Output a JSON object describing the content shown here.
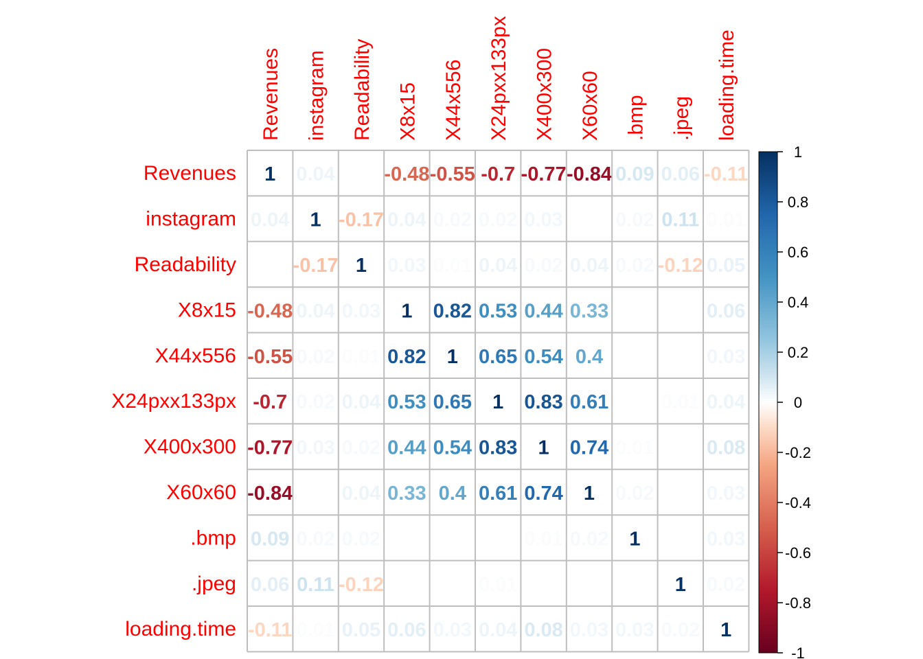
{
  "chart_data": {
    "type": "heatmap",
    "title": "",
    "variables": [
      "Revenues",
      "instagram",
      "Readability",
      "X8x15",
      "X44x556",
      "X24pxx133px",
      "X400x300",
      "X60x60",
      ".bmp",
      ".jpeg",
      "loading.time"
    ],
    "matrix": [
      [
        1,
        0.04,
        0,
        -0.48,
        -0.55,
        -0.7,
        -0.77,
        -0.84,
        0.09,
        0.06,
        -0.11
      ],
      [
        0.04,
        1,
        -0.17,
        0.04,
        0.02,
        0.02,
        0.03,
        0,
        0.02,
        0.11,
        0.01
      ],
      [
        0,
        -0.17,
        1,
        0.03,
        0.01,
        0.04,
        0.02,
        0.04,
        0.02,
        -0.12,
        0.05
      ],
      [
        -0.48,
        0.04,
        0.03,
        1,
        0.82,
        0.53,
        0.44,
        0.33,
        0,
        0,
        0.06
      ],
      [
        -0.55,
        0.02,
        0.01,
        0.82,
        1,
        0.65,
        0.54,
        0.4,
        0,
        0,
        0.03
      ],
      [
        -0.7,
        0.02,
        0.04,
        0.53,
        0.65,
        1,
        0.83,
        0.61,
        0,
        0.01,
        0.04
      ],
      [
        -0.77,
        0.03,
        0.02,
        0.44,
        0.54,
        0.83,
        1,
        0.74,
        0.01,
        0,
        0.08
      ],
      [
        -0.84,
        0,
        0.04,
        0.33,
        0.4,
        0.61,
        0.74,
        1,
        0.02,
        0,
        0.03
      ],
      [
        0.09,
        0.02,
        0.02,
        0,
        0,
        0,
        0.01,
        0.02,
        1,
        0,
        0.03
      ],
      [
        0.06,
        0.11,
        -0.12,
        0,
        0,
        0.01,
        0,
        0,
        0,
        1,
        0.02
      ],
      [
        -0.11,
        0.01,
        0.05,
        0.06,
        0.03,
        0.04,
        0.08,
        0.03,
        0.03,
        0.02,
        1
      ]
    ],
    "colorbar": {
      "range": [
        -1,
        1
      ],
      "ticks": [
        "1",
        "0.8",
        "0.6",
        "0.4",
        "0.2",
        "0",
        "-0.2",
        "-0.4",
        "-0.6",
        "-0.8",
        "-1"
      ],
      "ticks_values": [
        1,
        0.8,
        0.6,
        0.4,
        0.2,
        0,
        -0.2,
        -0.4,
        -0.6,
        -0.8,
        -1
      ],
      "stops": [
        {
          "v": -1,
          "color": "#67001F"
        },
        {
          "v": -0.75,
          "color": "#B2182B"
        },
        {
          "v": -0.5,
          "color": "#D6604D"
        },
        {
          "v": -0.25,
          "color": "#F4A582"
        },
        {
          "v": -0.1,
          "color": "#FDDBC7"
        },
        {
          "v": 0,
          "color": "#FFFFFF"
        },
        {
          "v": 0.1,
          "color": "#D1E5F0"
        },
        {
          "v": 0.25,
          "color": "#92C5DE"
        },
        {
          "v": 0.5,
          "color": "#4393C3"
        },
        {
          "v": 0.75,
          "color": "#2166AC"
        },
        {
          "v": 1,
          "color": "#053061"
        }
      ],
      "placement": "right"
    },
    "label_color": "#FF0000",
    "grid_color": "#BEBEBE",
    "grid": true
  }
}
